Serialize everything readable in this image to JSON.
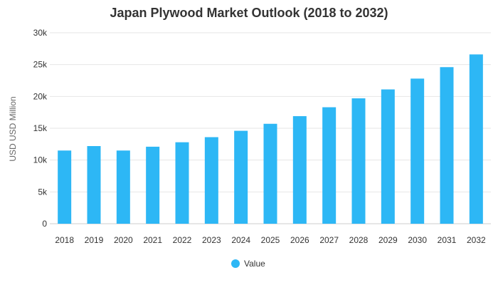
{
  "chart_data": {
    "type": "bar",
    "title": "Japan Plywood Market Outlook (2018 to 2032)",
    "xlabel": "",
    "ylabel": "USD USD Million",
    "categories": [
      "2018",
      "2019",
      "2020",
      "2021",
      "2022",
      "2023",
      "2024",
      "2025",
      "2026",
      "2027",
      "2028",
      "2029",
      "2030",
      "2031",
      "2032"
    ],
    "series": [
      {
        "name": "Value",
        "color": "#2db7f5",
        "values": [
          11500,
          12200,
          11500,
          12100,
          12800,
          13600,
          14600,
          15700,
          16900,
          18300,
          19700,
          21100,
          22800,
          24600,
          26600
        ]
      }
    ],
    "ylim": [
      0,
      30000
    ],
    "yticks": [
      0,
      5000,
      10000,
      15000,
      20000,
      25000,
      30000
    ],
    "ytick_labels": [
      "0",
      "5k",
      "10k",
      "15k",
      "20k",
      "25k",
      "30k"
    ],
    "grid": true,
    "legend": "bottom-center"
  }
}
